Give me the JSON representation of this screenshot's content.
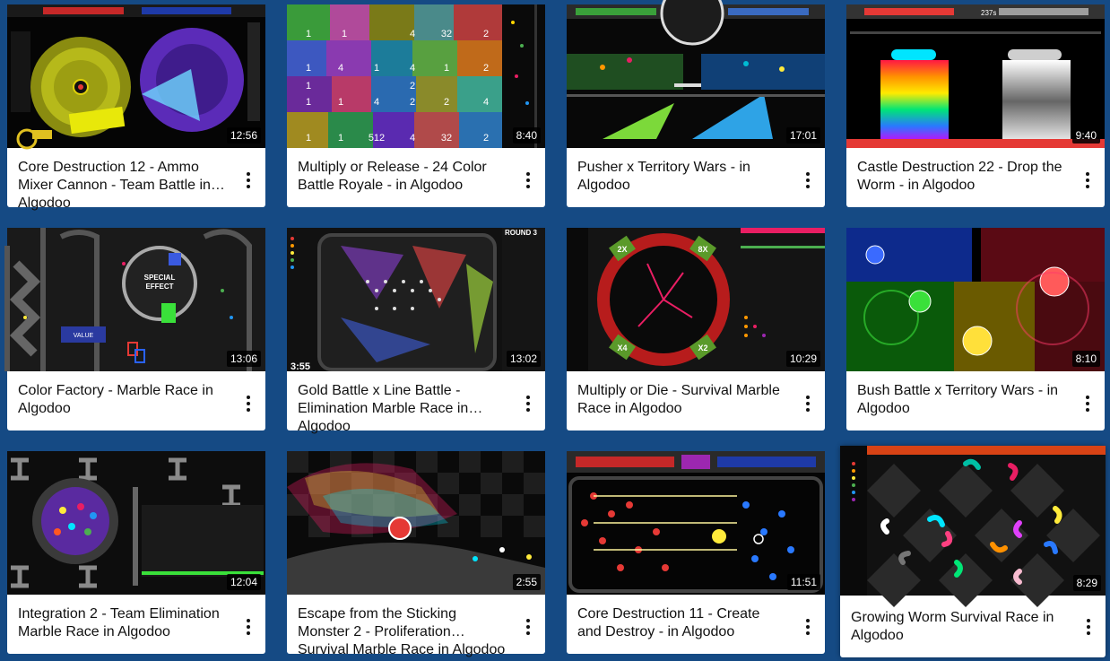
{
  "videos": [
    {
      "title": "Core Destruction 12 - Ammo Mixer Cannon - Team Battle in Algodoo",
      "duration": "12:56"
    },
    {
      "title": "Multiply or Release - 24 Color Battle Royale - in Algodoo",
      "duration": "8:40"
    },
    {
      "title": "Pusher x Territory Wars - in Algodoo",
      "duration": "17:01"
    },
    {
      "title": "Castle Destruction 22 - Drop the Worm - in Algodoo",
      "duration": "9:40"
    },
    {
      "title": "Color Factory - Marble Race in Algodoo",
      "duration": "13:06"
    },
    {
      "title": "Gold Battle x Line Battle - Elimination Marble Race in Algodoo",
      "duration": "13:02",
      "overlay_time": "3:55",
      "overlay_round": "ROUND 3"
    },
    {
      "title": "Multiply or Die - Survival Marble Race in Algodoo",
      "duration": "10:29"
    },
    {
      "title": "Bush Battle x Territory Wars - in Algodoo",
      "duration": "8:10"
    },
    {
      "title": "Integration 2 - Team Elimination Marble Race in Algodoo",
      "duration": "12:04"
    },
    {
      "title": "Escape from the Sticking Monster 2 - Proliferation Survival Marble Race in Algodoo",
      "duration": "2:55"
    },
    {
      "title": "Core Destruction 11 - Create and Destroy - in Algodoo",
      "duration": "11:51"
    },
    {
      "title": "Growing Worm Survival Race in Algodoo",
      "duration": "8:29"
    }
  ],
  "thumb_text": {
    "multiply_labels": [
      "1",
      "1",
      "4",
      "32",
      "2",
      "1",
      "4",
      "1",
      "4",
      "1",
      "2",
      "1",
      "1",
      "4",
      "2",
      "2",
      "4",
      "1",
      "2",
      "1",
      "1",
      "512",
      "4",
      "32",
      "2"
    ],
    "special_effect": [
      "SPECIAL",
      "EFFECT"
    ],
    "value_label": "VALUE",
    "mult_labels": [
      "2X",
      "8X",
      "X4",
      "X2"
    ],
    "speed_text": "237s"
  },
  "theme": {
    "page_bg": "#154a84",
    "card_bg": "#ffffff",
    "title_color": "#111111"
  }
}
